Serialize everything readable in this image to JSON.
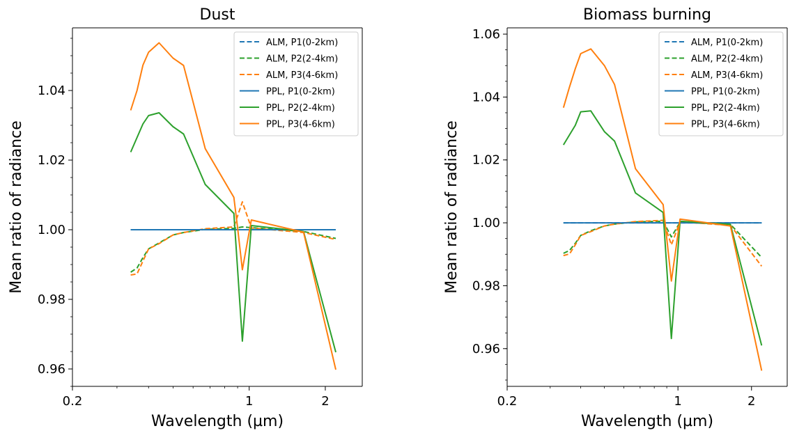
{
  "colors": {
    "P1": "#1f77b4",
    "P2": "#2ca02c",
    "P3": "#ff7f0e"
  },
  "chart_data": [
    {
      "type": "line",
      "title": "Dust",
      "xlabel": "Wavelength (µm)",
      "ylabel": "Mean ratio of radiance",
      "xscale": "log",
      "xlim": [
        0.2,
        2.8
      ],
      "ylim": [
        0.955,
        1.058
      ],
      "xticks": [
        0.2,
        1,
        2
      ],
      "xtick_labels": [
        "0.2",
        "1",
        "2"
      ],
      "yticks": [
        0.96,
        0.98,
        1.0,
        1.02,
        1.04
      ],
      "ytick_labels": [
        "0.96",
        "0.98",
        "1.00",
        "1.02",
        "1.04"
      ],
      "legend_position": "top-right",
      "series": [
        {
          "name": "ALM, P1(0-2km)",
          "style": "dashed",
          "color": "P1",
          "x": [
            0.34,
            0.38,
            0.44,
            0.5,
            0.55,
            0.67,
            0.87,
            1.02,
            1.64,
            2.2
          ],
          "y": [
            1.0,
            1.0,
            1.0,
            1.0,
            1.0,
            1.0,
            1.0,
            1.0,
            1.0,
            1.0
          ]
        },
        {
          "name": "ALM, P2(2-4km)",
          "style": "dashed",
          "color": "P2",
          "x": [
            0.34,
            0.36,
            0.38,
            0.4,
            0.44,
            0.5,
            0.55,
            0.67,
            0.87,
            0.94,
            1.02,
            1.64,
            2.2
          ],
          "y": [
            0.9878,
            0.989,
            0.992,
            0.9945,
            0.9962,
            0.9985,
            0.9992,
            1.0001,
            1.0004,
            1.0008,
            1.0006,
            0.9995,
            0.9975
          ]
        },
        {
          "name": "ALM, P3(4-6km)",
          "style": "dashed",
          "color": "P3",
          "x": [
            0.34,
            0.36,
            0.38,
            0.4,
            0.44,
            0.5,
            0.55,
            0.67,
            0.87,
            0.94,
            1.02,
            1.64,
            2.2
          ],
          "y": [
            0.987,
            0.9873,
            0.991,
            0.9945,
            0.996,
            0.9985,
            0.9992,
            1.0003,
            1.0008,
            1.008,
            1.0005,
            0.9992,
            0.9972
          ]
        },
        {
          "name": "PPL, P1(0-2km)",
          "style": "solid",
          "color": "P1",
          "x": [
            0.34,
            0.38,
            0.44,
            0.5,
            0.55,
            0.67,
            0.87,
            1.02,
            1.64,
            2.2
          ],
          "y": [
            1.0,
            1.0,
            1.0,
            1.0,
            1.0,
            1.0,
            1.0,
            1.0,
            1.0,
            1.0
          ]
        },
        {
          "name": "PPL, P2(2-4km)",
          "style": "solid",
          "color": "P2",
          "x": [
            0.34,
            0.38,
            0.4,
            0.44,
            0.5,
            0.55,
            0.67,
            0.87,
            0.94,
            1.02,
            1.64,
            2.2
          ],
          "y": [
            1.0223,
            1.0304,
            1.0328,
            1.0336,
            1.0296,
            1.0275,
            1.013,
            1.0047,
            0.968,
            1.0012,
            0.9995,
            0.9648
          ]
        },
        {
          "name": "PPL, P3(4-6km)",
          "style": "solid",
          "color": "P3",
          "x": [
            0.34,
            0.36,
            0.38,
            0.4,
            0.44,
            0.5,
            0.55,
            0.67,
            0.87,
            0.9,
            0.94,
            1.02,
            1.64,
            2.2
          ],
          "y": [
            1.0343,
            1.04,
            1.0473,
            1.051,
            1.0537,
            1.0493,
            1.0472,
            1.0233,
            1.0093,
            1.0005,
            0.9885,
            1.0028,
            0.9993,
            0.9598
          ]
        }
      ]
    },
    {
      "type": "line",
      "title": "Biomass burning",
      "xlabel": "Wavelength (µm)",
      "ylabel": "Mean ratio of radiance",
      "xscale": "log",
      "xlim": [
        0.2,
        2.8
      ],
      "ylim": [
        0.948,
        1.062
      ],
      "xticks": [
        0.2,
        1,
        2
      ],
      "xtick_labels": [
        "0.2",
        "1",
        "2"
      ],
      "yticks": [
        0.96,
        0.98,
        1.0,
        1.02,
        1.04,
        1.06
      ],
      "ytick_labels": [
        "0.96",
        "0.98",
        "1.00",
        "1.02",
        "1.04",
        "1.06"
      ],
      "legend_position": "top-right",
      "series": [
        {
          "name": "ALM, P1(0-2km)",
          "style": "dashed",
          "color": "P1",
          "x": [
            0.34,
            0.38,
            0.44,
            0.5,
            0.55,
            0.67,
            0.87,
            1.02,
            1.64,
            2.2
          ],
          "y": [
            1.0,
            1.0,
            1.0,
            1.0,
            1.0,
            1.0,
            1.0,
            1.0,
            1.0,
            1.0
          ]
        },
        {
          "name": "ALM, P2(2-4km)",
          "style": "dashed",
          "color": "P2",
          "x": [
            0.34,
            0.36,
            0.38,
            0.4,
            0.44,
            0.5,
            0.55,
            0.67,
            0.87,
            0.94,
            1.02,
            1.64,
            2.2
          ],
          "y": [
            0.9903,
            0.9912,
            0.9935,
            0.996,
            0.9975,
            0.999,
            0.9996,
            1.0003,
            1.0005,
            0.9955,
            1.0002,
            0.9995,
            0.989
          ]
        },
        {
          "name": "ALM, P3(4-6km)",
          "style": "dashed",
          "color": "P3",
          "x": [
            0.34,
            0.36,
            0.38,
            0.4,
            0.44,
            0.5,
            0.55,
            0.67,
            0.87,
            0.94,
            1.02,
            1.64,
            2.2
          ],
          "y": [
            0.9896,
            0.9901,
            0.993,
            0.996,
            0.9972,
            0.999,
            0.9996,
            1.0004,
            1.0008,
            0.993,
            1.0003,
            0.9992,
            0.9862
          ]
        },
        {
          "name": "PPL, P1(0-2km)",
          "style": "solid",
          "color": "P1",
          "x": [
            0.34,
            0.38,
            0.44,
            0.5,
            0.55,
            0.67,
            0.87,
            1.02,
            1.64,
            2.2
          ],
          "y": [
            1.0,
            1.0,
            1.0,
            1.0,
            1.0,
            1.0,
            1.0,
            1.0,
            1.0,
            1.0
          ]
        },
        {
          "name": "PPL, P2(2-4km)",
          "style": "solid",
          "color": "P2",
          "x": [
            0.34,
            0.38,
            0.4,
            0.44,
            0.5,
            0.55,
            0.67,
            0.87,
            0.94,
            1.02,
            1.64,
            2.2
          ],
          "y": [
            1.0248,
            1.031,
            1.0353,
            1.0356,
            1.029,
            1.026,
            1.0095,
            1.0033,
            0.9632,
            1.0005,
            0.9995,
            0.961
          ]
        },
        {
          "name": "PPL, P3(4-6km)",
          "style": "solid",
          "color": "P3",
          "x": [
            0.34,
            0.36,
            0.38,
            0.4,
            0.44,
            0.5,
            0.55,
            0.67,
            0.87,
            0.94,
            1.02,
            1.64,
            2.2
          ],
          "y": [
            1.0366,
            1.0432,
            1.049,
            1.0538,
            1.0553,
            1.05,
            1.044,
            1.0172,
            1.0058,
            0.9815,
            1.0012,
            0.999,
            0.953
          ]
        }
      ]
    }
  ]
}
